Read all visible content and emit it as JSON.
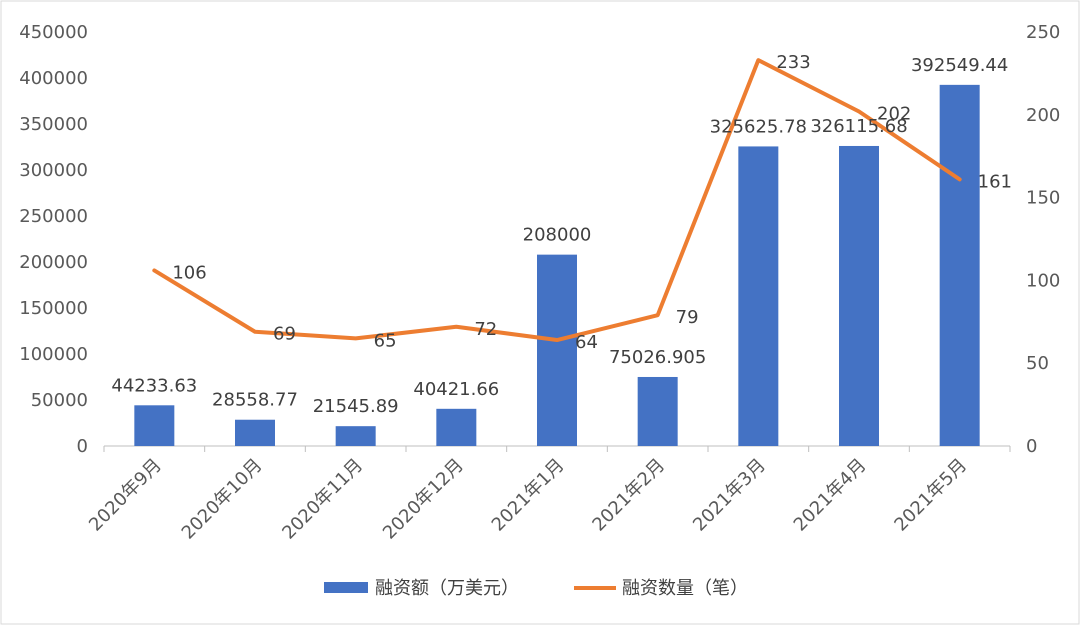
{
  "chart_data": {
    "type": "bar",
    "categories": [
      "2020年9月",
      "2020年10月",
      "2020年11月",
      "2020年12月",
      "2021年1月",
      "2021年2月",
      "2021年3月",
      "2021年4月",
      "2021年5月"
    ],
    "series": [
      {
        "name": "融资额（万美元）",
        "type": "bar",
        "axis": "left",
        "color": "#4472C4",
        "values": [
          44233.63,
          28558.77,
          21545.89,
          40421.66,
          208000,
          75026.905,
          325625.78,
          326115.68,
          392549.44
        ],
        "labels": [
          "44233.63",
          "28558.77",
          "21545.89",
          "40421.66",
          "208000",
          "75026.905",
          "325625.78",
          "326115.68",
          "392549.44"
        ]
      },
      {
        "name": "融资数量（笔）",
        "type": "line",
        "axis": "right",
        "color": "#ED7D31",
        "values": [
          106,
          69,
          65,
          72,
          64,
          79,
          233,
          202,
          161
        ],
        "labels": [
          "106",
          "69",
          "65",
          "72",
          "64",
          "79",
          "233",
          "202",
          "161"
        ]
      }
    ],
    "y_left": {
      "range": [
        0,
        450000
      ],
      "ticks": [
        "0",
        "50000",
        "100000",
        "150000",
        "200000",
        "250000",
        "300000",
        "350000",
        "400000",
        "450000"
      ]
    },
    "y_right": {
      "range": [
        0,
        250
      ],
      "ticks": [
        "0",
        "50",
        "100",
        "150",
        "200",
        "250"
      ]
    },
    "grid": false,
    "legend_position": "bottom"
  }
}
